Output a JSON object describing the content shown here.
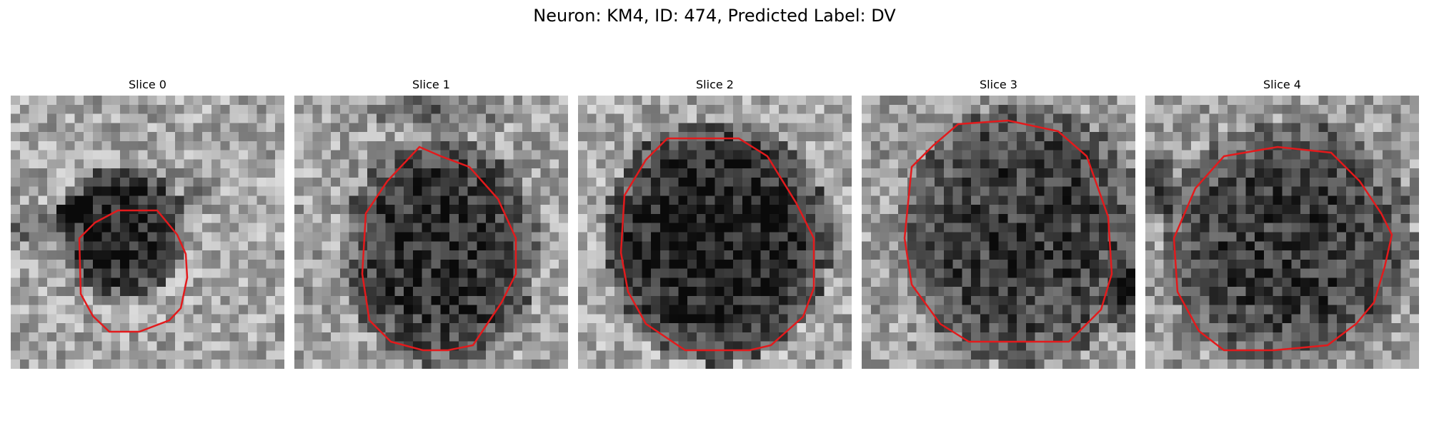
{
  "figure": {
    "title": "Neuron: KM4, ID: 474, Predicted Label: DV"
  },
  "contour_color": "#e31a1c",
  "panels": [
    {
      "title": "Slice 0"
    },
    {
      "title": "Slice 1"
    },
    {
      "title": "Slice 2"
    },
    {
      "title": "Slice 3"
    },
    {
      "title": "Slice 4"
    }
  ]
}
